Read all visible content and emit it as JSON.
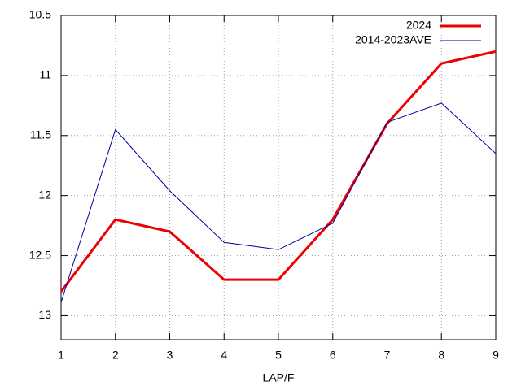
{
  "chart_data": {
    "type": "line",
    "x_label": "LAP/F",
    "x": [
      1,
      2,
      3,
      4,
      5,
      6,
      7,
      8,
      9
    ],
    "xlim": [
      1,
      9
    ],
    "xticks": [
      1,
      2,
      3,
      4,
      5,
      6,
      7,
      8,
      9
    ],
    "ylim": [
      10.5,
      13.2
    ],
    "yticks": [
      10.5,
      11,
      11.5,
      12,
      12.5,
      13
    ],
    "y_reversed": true,
    "grid": true,
    "legend": "top-right",
    "series": [
      {
        "name": "2024",
        "color": "#ee0000",
        "width": 3,
        "values": [
          12.8,
          12.2,
          12.3,
          12.7,
          12.7,
          12.2,
          11.4,
          10.9,
          10.8
        ]
      },
      {
        "name": "2014-2023AVE",
        "color": "#0000a0",
        "width": 1,
        "values": [
          12.89,
          11.45,
          11.96,
          12.39,
          12.45,
          12.23,
          11.39,
          11.23,
          11.65
        ]
      }
    ]
  }
}
